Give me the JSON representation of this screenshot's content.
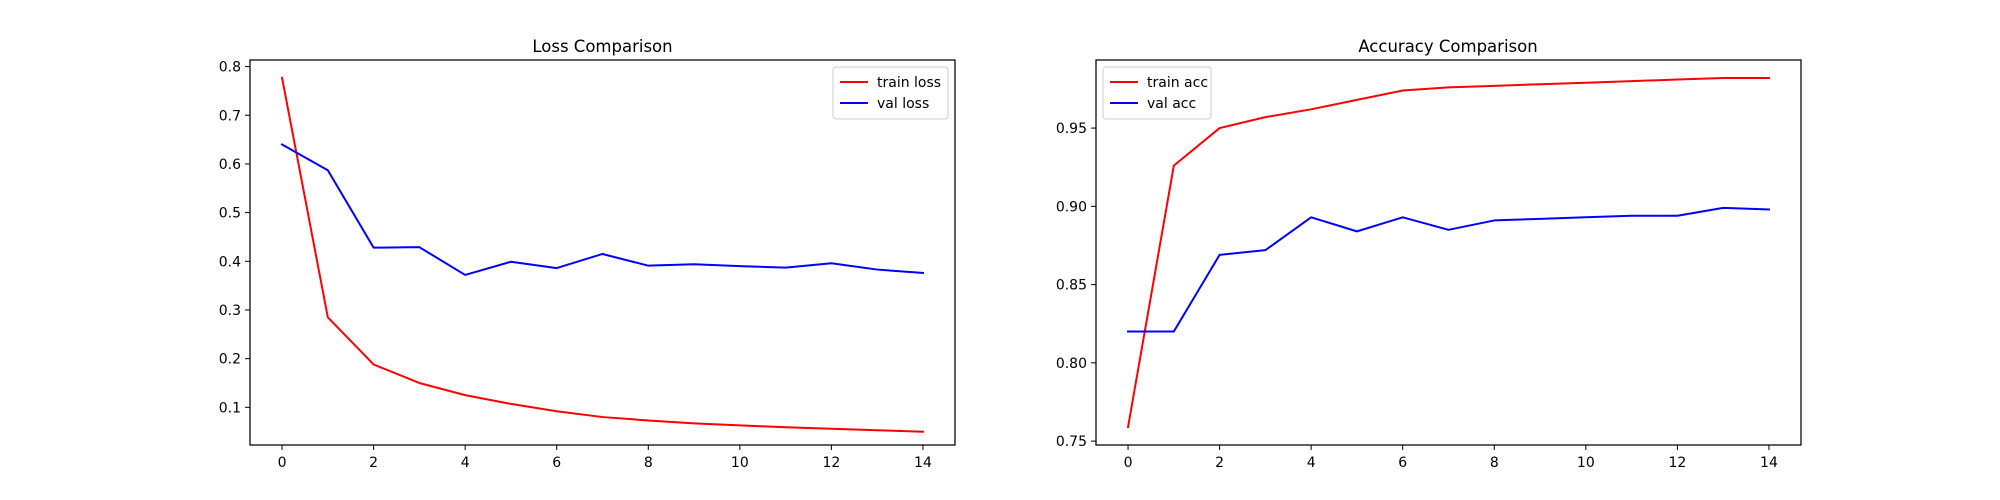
{
  "colors": {
    "train": "#ff0000",
    "val": "#0000ff"
  },
  "chart_data": [
    {
      "type": "line",
      "title": "Loss Comparison",
      "xlabel": "",
      "ylabel": "",
      "xlim": [
        -0.7,
        14.7
      ],
      "ylim": [
        0.0226,
        0.8135
      ],
      "xticks": [
        0,
        2,
        4,
        6,
        8,
        10,
        12,
        14
      ],
      "xtick_labels": [
        "0",
        "2",
        "4",
        "6",
        "8",
        "10",
        "12",
        "14"
      ],
      "yticks": [
        0.1,
        0.2,
        0.3,
        0.4,
        0.5,
        0.6,
        0.7,
        0.8
      ],
      "ytick_labels": [
        "0.1",
        "0.2",
        "0.3",
        "0.4",
        "0.5",
        "0.6",
        "0.7",
        "0.8"
      ],
      "grid": false,
      "legend_position": "top-right",
      "x": [
        0,
        1,
        2,
        3,
        4,
        5,
        6,
        7,
        8,
        9,
        10,
        11,
        12,
        13,
        14
      ],
      "series": [
        {
          "name": "train loss",
          "color": "#ff0000",
          "values": [
            0.777,
            0.285,
            0.188,
            0.15,
            0.125,
            0.107,
            0.092,
            0.08,
            0.073,
            0.067,
            0.063,
            0.059,
            0.056,
            0.053,
            0.05
          ]
        },
        {
          "name": "val loss",
          "color": "#0000ff",
          "values": [
            0.64,
            0.587,
            0.428,
            0.429,
            0.372,
            0.399,
            0.386,
            0.415,
            0.391,
            0.394,
            0.39,
            0.387,
            0.396,
            0.383,
            0.376
          ]
        }
      ]
    },
    {
      "type": "line",
      "title": "Accuracy Comparison",
      "xlabel": "",
      "ylabel": "",
      "xlim": [
        -0.7,
        14.7
      ],
      "ylim": [
        0.7475,
        0.9935
      ],
      "xticks": [
        0,
        2,
        4,
        6,
        8,
        10,
        12,
        14
      ],
      "xtick_labels": [
        "0",
        "2",
        "4",
        "6",
        "8",
        "10",
        "12",
        "14"
      ],
      "yticks": [
        0.75,
        0.8,
        0.85,
        0.9,
        0.95
      ],
      "ytick_labels": [
        "0.75",
        "0.80",
        "0.85",
        "0.90",
        "0.95"
      ],
      "grid": false,
      "legend_position": "top-left",
      "x": [
        0,
        1,
        2,
        3,
        4,
        5,
        6,
        7,
        8,
        9,
        10,
        11,
        12,
        13,
        14
      ],
      "series": [
        {
          "name": "train acc",
          "color": "#ff0000",
          "values": [
            0.759,
            0.926,
            0.95,
            0.957,
            0.962,
            0.968,
            0.974,
            0.976,
            0.977,
            0.978,
            0.979,
            0.98,
            0.981,
            0.982,
            0.982
          ]
        },
        {
          "name": "val acc",
          "color": "#0000ff",
          "values": [
            0.82,
            0.82,
            0.869,
            0.872,
            0.893,
            0.884,
            0.893,
            0.885,
            0.891,
            0.892,
            0.893,
            0.894,
            0.894,
            0.899,
            0.898
          ]
        }
      ]
    }
  ]
}
